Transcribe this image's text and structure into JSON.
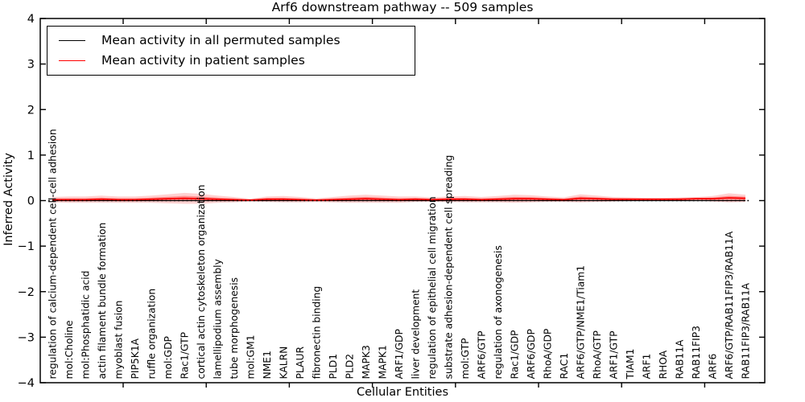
{
  "chart_data": {
    "type": "line",
    "title": "Arf6 downstream pathway -- 509 samples",
    "xlabel": "Cellular Entities",
    "ylabel": "Inferred Activity",
    "ylim": [
      -4,
      4
    ],
    "ytick_values": [
      4,
      3,
      2,
      1,
      0,
      -1,
      -2,
      -3,
      -4
    ],
    "ytick_labels": [
      "4",
      "3",
      "2",
      "1",
      "0",
      "−1",
      "−2",
      "−3",
      "−4"
    ],
    "grid": false,
    "legend_position": "upper left",
    "zero_line": {
      "y": 0,
      "style": "dotted",
      "color": "#000000"
    },
    "categories": [
      "regulation of calcium-dependent cell-cell adhesion",
      "mol:Choline",
      "mol:Phosphatidic acid",
      "actin filament bundle formation",
      "myoblast fusion",
      "PIP5K1A",
      "ruffle organization",
      "mol:GDP",
      "Rac1/GTP",
      "cortical actin cytoskeleton organization",
      "lamellipodium assembly",
      "tube morphogenesis",
      "mol:GM1",
      "NME1",
      "KALRN",
      "PLAUR",
      "fibronectin binding",
      "PLD1",
      "PLD2",
      "MAPK3",
      "MAPK1",
      "ARF1/GDP",
      "liver development",
      "regulation of epithelial cell migration",
      "substrate adhesion-dependent cell spreading",
      "mol:GTP",
      "ARF6/GTP",
      "regulation of axonogenesis",
      "Rac1/GDP",
      "ARF6/GDP",
      "RhoA/GDP",
      "RAC1",
      "ARF6/GTP/NME1/Tiam1",
      "RhoA/GTP",
      "ARF1/GTP",
      "TIAM1",
      "ARF1",
      "RHOA",
      "RAB11A",
      "RAB11FIP3",
      "ARF6",
      "ARF6/GTP/RAB11FIP3/RAB11A",
      "RAB11FIP3/RAB11A"
    ],
    "series": [
      {
        "name": "Mean activity in all permuted samples",
        "color": "#000000",
        "values": [
          0,
          0,
          0,
          0,
          0,
          0,
          0,
          0,
          0,
          0,
          0,
          0,
          0,
          0,
          0,
          0,
          0,
          0,
          0,
          0,
          0,
          0,
          0,
          0,
          0,
          0,
          0,
          0,
          0,
          0,
          0,
          0,
          0,
          0,
          0,
          0,
          0,
          0,
          0,
          0,
          0,
          0,
          0
        ]
      },
      {
        "name": "Mean activity in patient samples",
        "color": "#ff0000",
        "values": [
          0.02,
          0.02,
          0.02,
          0.03,
          0.02,
          0.02,
          0.03,
          0.04,
          0.05,
          0.04,
          0.03,
          0.02,
          0.01,
          0.03,
          0.03,
          0.02,
          0.01,
          0.02,
          0.03,
          0.04,
          0.03,
          0.02,
          0.03,
          0.02,
          0.03,
          0.03,
          0.02,
          0.03,
          0.04,
          0.04,
          0.03,
          0.02,
          0.05,
          0.04,
          0.03,
          0.03,
          0.03,
          0.03,
          0.03,
          0.04,
          0.04,
          0.06,
          0.05
        ]
      }
    ],
    "band_half_width": [
      0.06,
      0.07,
      0.07,
      0.08,
      0.07,
      0.07,
      0.08,
      0.1,
      0.12,
      0.11,
      0.08,
      0.06,
      0.03,
      0.06,
      0.07,
      0.06,
      0.04,
      0.06,
      0.08,
      0.09,
      0.08,
      0.07,
      0.06,
      0.05,
      0.06,
      0.07,
      0.06,
      0.07,
      0.09,
      0.08,
      0.06,
      0.05,
      0.09,
      0.07,
      0.05,
      0.04,
      0.03,
      0.03,
      0.04,
      0.04,
      0.06,
      0.1,
      0.08
    ],
    "band_color": "#ff0000"
  },
  "legend": {
    "items": [
      {
        "label": "Mean activity in all permuted samples",
        "color": "#000000"
      },
      {
        "label": "Mean activity in patient samples",
        "color": "#ff0000"
      }
    ]
  }
}
